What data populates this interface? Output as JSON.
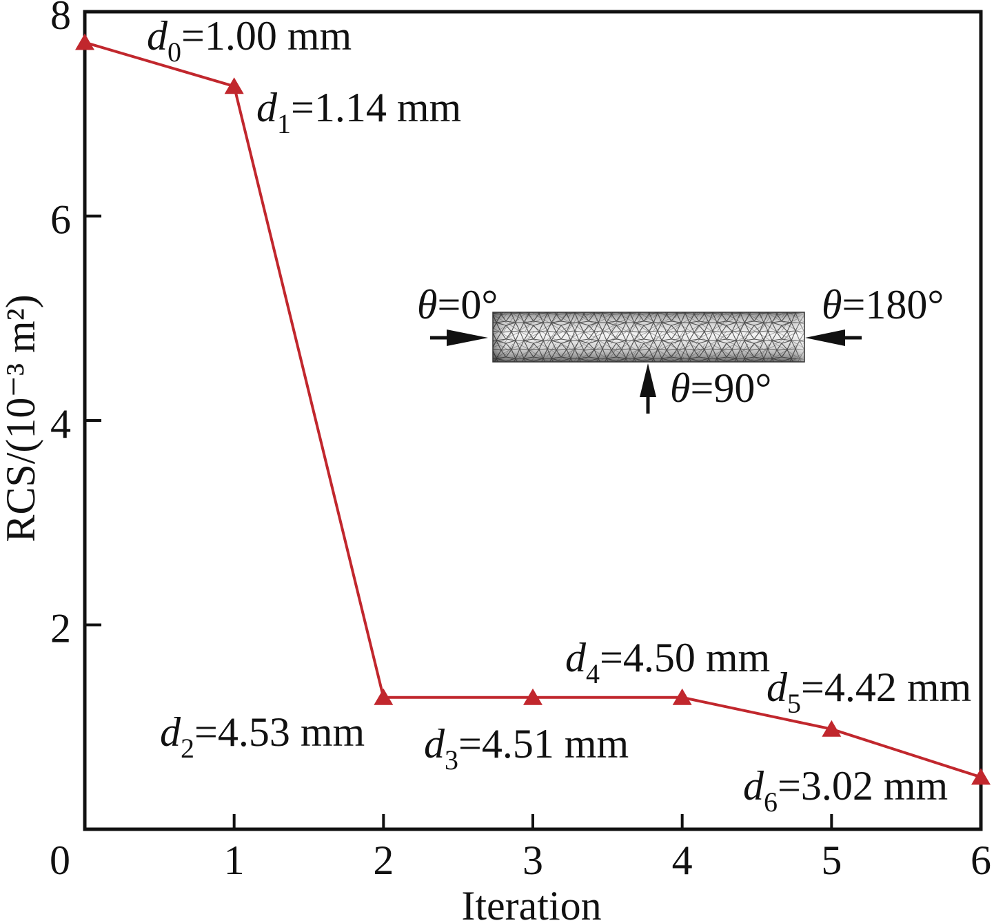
{
  "chart_data": {
    "type": "line",
    "xlabel": "Iteration",
    "ylabel": "RCS/(10⁻³ m²)",
    "xlim": [
      0,
      6
    ],
    "ylim": [
      0,
      8
    ],
    "xticks": [
      0,
      1,
      2,
      3,
      4,
      5,
      6
    ],
    "yticks": [
      2,
      4,
      6,
      8
    ],
    "grid": false,
    "series": [
      {
        "x": [
          0,
          1,
          2,
          3,
          4,
          5,
          6
        ],
        "y": [
          7.7,
          7.27,
          1.29,
          1.29,
          1.29,
          0.98,
          0.51
        ],
        "marker": "triangle",
        "color": "#C1272D"
      }
    ],
    "annotations": [
      {
        "var": "d",
        "sub": "0",
        "text": "=1.00 mm"
      },
      {
        "var": "d",
        "sub": "1",
        "text": "=1.14 mm"
      },
      {
        "var": "d",
        "sub": "2",
        "text": "=4.53 mm"
      },
      {
        "var": "d",
        "sub": "3",
        "text": "=4.51 mm"
      },
      {
        "var": "d",
        "sub": "4",
        "text": "=4.50 mm"
      },
      {
        "var": "d",
        "sub": "5",
        "text": "=4.42 mm"
      },
      {
        "var": "d",
        "sub": "6",
        "text": "=3.02 mm"
      }
    ],
    "inset": {
      "labels": [
        {
          "var": "θ",
          "text": "=0°"
        },
        {
          "var": "θ",
          "text": "=180°"
        },
        {
          "var": "θ",
          "text": "=90°"
        }
      ]
    }
  }
}
